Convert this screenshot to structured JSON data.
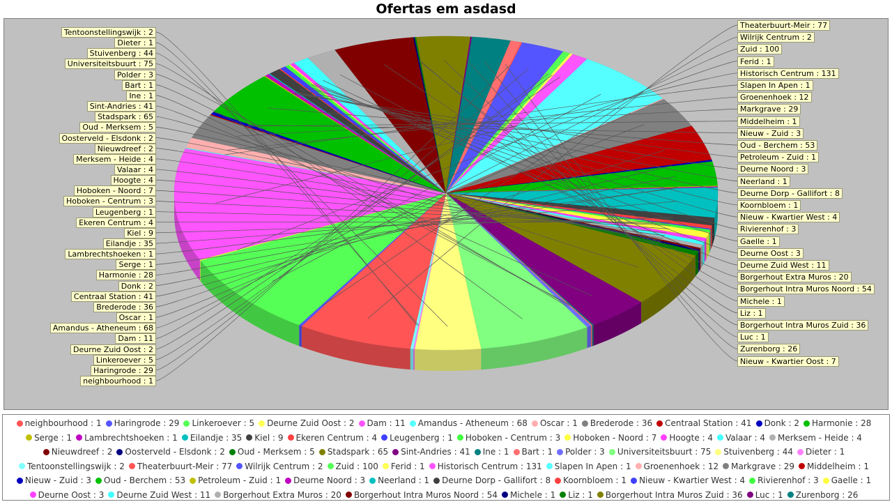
{
  "chart_data": {
    "type": "pie",
    "title": "Ofertas em asdasd",
    "legend_placement": "bottom",
    "label_format": "{name} : {value}",
    "slices": [
      {
        "name": "neighbourhood",
        "value": 1,
        "color": "#ff5555"
      },
      {
        "name": "Haringrode",
        "value": 29,
        "color": "#5555ff"
      },
      {
        "name": "Linkeroever",
        "value": 5,
        "color": "#55ff55"
      },
      {
        "name": "Deurne Zuid Oost",
        "value": 2,
        "color": "#ffff55"
      },
      {
        "name": "Dam",
        "value": 11,
        "color": "#ff55ff"
      },
      {
        "name": "Amandus - Atheneum",
        "value": 68,
        "color": "#55ffff"
      },
      {
        "name": "Oscar",
        "value": 1,
        "color": "#ffafaf"
      },
      {
        "name": "Brederode",
        "value": 36,
        "color": "#808080"
      },
      {
        "name": "Centraal Station",
        "value": 41,
        "color": "#c00000"
      },
      {
        "name": "Donk",
        "value": 2,
        "color": "#0000c0"
      },
      {
        "name": "Harmonie",
        "value": 28,
        "color": "#00c000"
      },
      {
        "name": "Serge",
        "value": 1,
        "color": "#c0c000"
      },
      {
        "name": "Lambrechtshoeken",
        "value": 1,
        "color": "#c000c0"
      },
      {
        "name": "Eilandje",
        "value": 35,
        "color": "#00c0c0"
      },
      {
        "name": "Kiel",
        "value": 9,
        "color": "#404040"
      },
      {
        "name": "Ekeren Centrum",
        "value": 4,
        "color": "#ff4040"
      },
      {
        "name": "Leugenberg",
        "value": 1,
        "color": "#4040ff"
      },
      {
        "name": "Hoboken - Centrum",
        "value": 3,
        "color": "#40ff40"
      },
      {
        "name": "Hoboken - Noord",
        "value": 7,
        "color": "#ffff40"
      },
      {
        "name": "Hoogte",
        "value": 4,
        "color": "#ff40ff"
      },
      {
        "name": "Valaar",
        "value": 4,
        "color": "#40ffff"
      },
      {
        "name": "Merksem - Heide",
        "value": 4,
        "color": "#b0b0b0"
      },
      {
        "name": "Nieuwdreef",
        "value": 2,
        "color": "#800000"
      },
      {
        "name": "Oosterveld - Elsdonk",
        "value": 2,
        "color": "#000080"
      },
      {
        "name": "Oud - Merksem",
        "value": 5,
        "color": "#008000"
      },
      {
        "name": "Stadspark",
        "value": 65,
        "color": "#808000"
      },
      {
        "name": "Sint-Andries",
        "value": 41,
        "color": "#800080"
      },
      {
        "name": "Ine",
        "value": 1,
        "color": "#008080"
      },
      {
        "name": "Bart",
        "value": 1,
        "color": "#ff6f6f"
      },
      {
        "name": "Polder",
        "value": 3,
        "color": "#6f6fff"
      },
      {
        "name": "Universiteitsbuurt",
        "value": 75,
        "color": "#80ff80"
      },
      {
        "name": "Stuivenberg",
        "value": 44,
        "color": "#ffff80"
      },
      {
        "name": "Dieter",
        "value": 1,
        "color": "#ff80ff"
      },
      {
        "name": "Tentoonstellingswijk",
        "value": 2,
        "color": "#80ffff"
      },
      {
        "name": "Theaterbuurt-Meir",
        "value": 77,
        "color": "#ff5555"
      },
      {
        "name": "Wilrijk Centrum",
        "value": 2,
        "color": "#5555ff"
      },
      {
        "name": "Zuid",
        "value": 100,
        "color": "#55ff55"
      },
      {
        "name": "Ferid",
        "value": 1,
        "color": "#ffff55"
      },
      {
        "name": "Historisch Centrum",
        "value": 131,
        "color": "#ff55ff"
      },
      {
        "name": "Slapen In Apen",
        "value": 1,
        "color": "#55ffff"
      },
      {
        "name": "Groenenhoek",
        "value": 12,
        "color": "#ffafaf"
      },
      {
        "name": "Markgrave",
        "value": 29,
        "color": "#808080"
      },
      {
        "name": "Middelheim",
        "value": 1,
        "color": "#c00000"
      },
      {
        "name": "Nieuw - Zuid",
        "value": 3,
        "color": "#0000c0"
      },
      {
        "name": "Oud - Berchem",
        "value": 53,
        "color": "#00c000"
      },
      {
        "name": "Petroleum - Zuid",
        "value": 1,
        "color": "#c0c000"
      },
      {
        "name": "Deurne Noord",
        "value": 3,
        "color": "#c000c0"
      },
      {
        "name": "Neerland",
        "value": 1,
        "color": "#00c0c0"
      },
      {
        "name": "Deurne Dorp - Gallifort",
        "value": 8,
        "color": "#404040"
      },
      {
        "name": "Koornbloem",
        "value": 1,
        "color": "#ff4040"
      },
      {
        "name": "Nieuw - Kwartier West",
        "value": 4,
        "color": "#4040ff"
      },
      {
        "name": "Rivierenhof",
        "value": 3,
        "color": "#40ff40"
      },
      {
        "name": "Gaelle",
        "value": 1,
        "color": "#ffff40"
      },
      {
        "name": "Deurne Oost",
        "value": 3,
        "color": "#ff40ff"
      },
      {
        "name": "Deurne Zuid West",
        "value": 11,
        "color": "#40ffff"
      },
      {
        "name": "Borgerhout Extra Muros",
        "value": 20,
        "color": "#b0b0b0"
      },
      {
        "name": "Borgerhout Intra Muros Noord",
        "value": 54,
        "color": "#800000"
      },
      {
        "name": "Michele",
        "value": 1,
        "color": "#000080"
      },
      {
        "name": "Liz",
        "value": 1,
        "color": "#008000"
      },
      {
        "name": "Borgerhout Intra Muros Zuid",
        "value": 36,
        "color": "#808000"
      },
      {
        "name": "Luc",
        "value": 1,
        "color": "#800080"
      },
      {
        "name": "Zurenborg",
        "value": 26,
        "color": "#008080"
      },
      {
        "name": "Nieuw - Kwartier Oost",
        "value": 7,
        "color": "#ff6f6f"
      }
    ],
    "labels_left": [
      "Tentoonstellingswijk",
      "Dieter",
      "Stuivenberg",
      "Universiteitsbuurt",
      "Polder",
      "Bart",
      "Ine",
      "Sint-Andries",
      "Stadspark",
      "Oud - Merksem",
      "Oosterveld - Elsdonk",
      "Nieuwdreef",
      "Merksem - Heide",
      "Valaar",
      "Hoogte",
      "Hoboken - Noord",
      "Hoboken - Centrum",
      "Leugenberg",
      "Ekeren Centrum",
      "Kiel",
      "Eilandje",
      "Lambrechtshoeken",
      "Serge",
      "Harmonie",
      "Donk",
      "Centraal Station",
      "Brederode",
      "Oscar",
      "Amandus - Atheneum",
      "Dam",
      "Deurne Zuid Oost",
      "Linkeroever",
      "Haringrode",
      "neighbourhood"
    ],
    "labels_right": [
      "Theaterbuurt-Meir",
      "Wilrijk Centrum",
      "Zuid",
      "Ferid",
      "Historisch Centrum",
      "Slapen In Apen",
      "Groenenhoek",
      "Markgrave",
      "Middelheim",
      "Nieuw - Zuid",
      "Oud - Berchem",
      "Petroleum - Zuid",
      "Deurne Noord",
      "Neerland",
      "Deurne Dorp - Gallifort",
      "Koornbloem",
      "Nieuw - Kwartier West",
      "Rivierenhof",
      "Gaelle",
      "Deurne Oost",
      "Deurne Zuid West",
      "Borgerhout Extra Muros",
      "Borgerhout Intra Muros Noord",
      "Michele",
      "Liz",
      "Borgerhout Intra Muros Zuid",
      "Luc",
      "Zurenborg",
      "Nieuw - Kwartier Oost"
    ]
  }
}
